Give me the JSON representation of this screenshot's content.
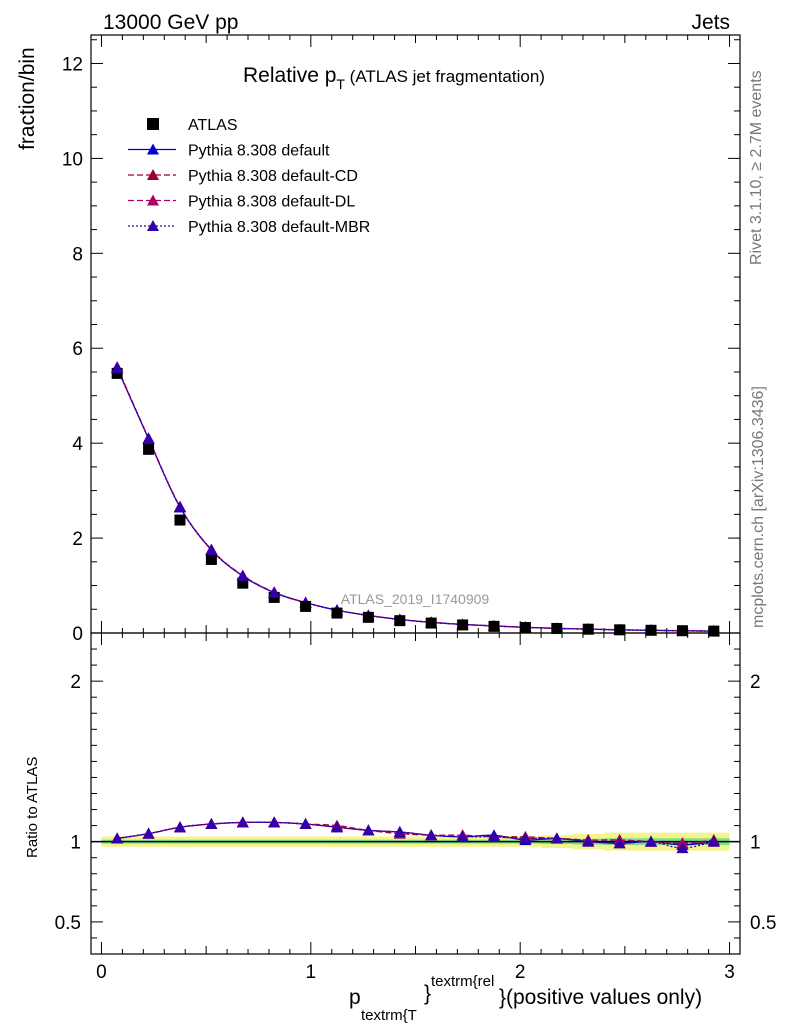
{
  "header": {
    "left": "13000 GeV pp",
    "right": "Jets"
  },
  "title": {
    "main": "Relative p",
    "sub": "T",
    "suffix": " (ATLAS jet fragmentation)"
  },
  "side_labels": {
    "rivet": "Rivet 3.1.10, ≥ 2.7M events",
    "mcplots": "mcplots.cern.ch [arXiv:1306.3436]"
  },
  "watermark": "ATLAS_2019_I1740909",
  "axes": {
    "upper_ylabel": "fraction/bin",
    "lower_ylabel": "Ratio to ATLAS",
    "xlabel_main": "p",
    "xlabel_sub": "textrm{T",
    "xlabel_sup": "textrm{rel",
    "xlabel_brace_open": "}",
    "xlabel_brace_close": "}",
    "xlabel_suffix": " (positive values only)"
  },
  "legend": [
    {
      "label": "ATLAS",
      "marker": "square",
      "color": "#000000",
      "dash": "none"
    },
    {
      "label": "Pythia 8.308 default",
      "marker": "triangle",
      "color": "#0000cc",
      "dash": "solid"
    },
    {
      "label": "Pythia 8.308 default-CD",
      "marker": "triangle",
      "color": "#990033",
      "dash": "dashed"
    },
    {
      "label": "Pythia 8.308 default-DL",
      "marker": "triangle",
      "color": "#aa0066",
      "dash": "dashed"
    },
    {
      "label": "Pythia 8.308 default-MBR",
      "marker": "triangle",
      "color": "#3300aa",
      "dash": "dotted"
    }
  ],
  "chart_data": {
    "type": "scatter",
    "xlim": [
      -0.05,
      3.05
    ],
    "upper_ylim": [
      0,
      12.6
    ],
    "lower_ylim": [
      0.3,
      2.3
    ],
    "upper_yticks": [
      0,
      2,
      4,
      6,
      8,
      10,
      12
    ],
    "lower_yticks": [
      0.5,
      1,
      2
    ],
    "xticks": [
      0,
      1,
      2,
      3
    ],
    "x": [
      0.075,
      0.225,
      0.375,
      0.525,
      0.675,
      0.825,
      0.975,
      1.125,
      1.275,
      1.425,
      1.575,
      1.725,
      1.875,
      2.025,
      2.175,
      2.325,
      2.475,
      2.625,
      2.775,
      2.925
    ],
    "data": [
      5.47,
      3.87,
      2.38,
      1.55,
      1.05,
      0.75,
      0.56,
      0.42,
      0.33,
      0.26,
      0.21,
      0.17,
      0.14,
      0.115,
      0.095,
      0.08,
      0.067,
      0.057,
      0.048,
      0.04
    ],
    "data_band": [
      0.02,
      0.02,
      0.02,
      0.02,
      0.02,
      0.02,
      0.02,
      0.02,
      0.02,
      0.02,
      0.02,
      0.02,
      0.02,
      0.02,
      0.025,
      0.03,
      0.035,
      0.035,
      0.035,
      0.035
    ],
    "series": [
      {
        "name": "Pythia 8.308 default",
        "color": "#0000cc",
        "dash": "solid",
        "values": [
          5.58,
          4.09,
          2.65,
          1.75,
          1.2,
          0.85,
          0.64,
          0.48,
          0.37,
          0.285,
          0.225,
          0.18,
          0.15,
          0.118,
          0.098,
          0.081,
          0.066,
          0.057,
          0.046,
          0.04
        ],
        "ratio": [
          1.02,
          1.05,
          1.09,
          1.11,
          1.12,
          1.12,
          1.11,
          1.09,
          1.07,
          1.06,
          1.04,
          1.03,
          1.04,
          1.01,
          1.02,
          1.0,
          0.99,
          1.0,
          0.98,
          1.0
        ]
      },
      {
        "name": "Pythia 8.308 default-CD",
        "color": "#990033",
        "dash": "dashed",
        "values": [
          5.6,
          4.1,
          2.66,
          1.75,
          1.21,
          0.85,
          0.64,
          0.48,
          0.37,
          0.285,
          0.225,
          0.18,
          0.148,
          0.12,
          0.098,
          0.081,
          0.068,
          0.057,
          0.048,
          0.04
        ],
        "ratio": [
          1.02,
          1.05,
          1.09,
          1.11,
          1.12,
          1.12,
          1.11,
          1.1,
          1.07,
          1.05,
          1.04,
          1.04,
          1.03,
          1.03,
          1.02,
          1.01,
          1.01,
          1.0,
          0.99,
          1.01
        ]
      },
      {
        "name": "Pythia 8.308 default-DL",
        "color": "#aa0066",
        "dash": "dashed",
        "values": [
          5.6,
          4.1,
          2.66,
          1.76,
          1.21,
          0.86,
          0.64,
          0.48,
          0.37,
          0.285,
          0.225,
          0.18,
          0.148,
          0.12,
          0.098,
          0.081,
          0.068,
          0.057,
          0.048,
          0.04
        ],
        "ratio": [
          1.02,
          1.05,
          1.09,
          1.11,
          1.12,
          1.12,
          1.11,
          1.09,
          1.07,
          1.06,
          1.04,
          1.04,
          1.03,
          1.02,
          1.02,
          1.01,
          1.01,
          1.0,
          0.99,
          1.0
        ]
      },
      {
        "name": "Pythia 8.308 default-MBR",
        "color": "#3300aa",
        "dash": "dotted",
        "values": [
          5.59,
          4.09,
          2.65,
          1.75,
          1.2,
          0.85,
          0.64,
          0.48,
          0.37,
          0.285,
          0.225,
          0.18,
          0.148,
          0.119,
          0.098,
          0.08,
          0.066,
          0.057,
          0.046,
          0.04
        ],
        "ratio": [
          1.02,
          1.05,
          1.09,
          1.11,
          1.12,
          1.12,
          1.11,
          1.09,
          1.07,
          1.06,
          1.04,
          1.03,
          1.03,
          1.02,
          1.02,
          1.0,
          0.99,
          1.0,
          0.96,
          1.0
        ]
      }
    ]
  }
}
